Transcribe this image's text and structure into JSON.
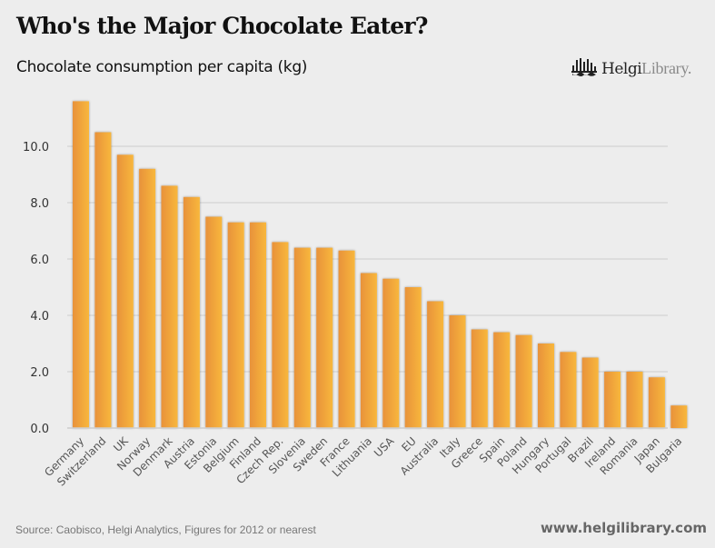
{
  "header": {
    "title": "Who's the Major Chocolate Eater?",
    "subtitle": "Chocolate consumption per capita (kg)",
    "logo_bold": "Helgi",
    "logo_light": "Library."
  },
  "footer": {
    "source": "Source: Caobisco, Helgi Analytics, Figures for 2012 or nearest",
    "site": "www.helgilibrary.com"
  },
  "colors": {
    "bar_dark": "#e8923a",
    "bar_light": "#f8b73c",
    "grid": "#d4d4d4",
    "background": "#ededed"
  },
  "chart_data": {
    "type": "bar",
    "title": "Who's the Major Chocolate Eater?",
    "subtitle": "Chocolate consumption per capita (kg)",
    "xlabel": "",
    "ylabel": "",
    "ylim": [
      0,
      11.5
    ],
    "yticks": [
      0.0,
      2.0,
      4.0,
      6.0,
      8.0,
      10.0
    ],
    "ytick_labels": [
      "0.0",
      "2.0",
      "4.0",
      "6.0",
      "8.0",
      "10.0"
    ],
    "grid": true,
    "legend": "none",
    "categories": [
      "Germany",
      "Switzerland",
      "UK",
      "Norway",
      "Denmark",
      "Austria",
      "Estonia",
      "Belgium",
      "Finland",
      "Czech Rep.",
      "Slovenia",
      "Sweden",
      "France",
      "Lithuania",
      "USA",
      "EU",
      "Australia",
      "Italy",
      "Greece",
      "Spain",
      "Poland",
      "Hungary",
      "Portugal",
      "Brazil",
      "Ireland",
      "Romania",
      "Japan",
      "Bulgaria"
    ],
    "values": [
      11.6,
      10.5,
      9.7,
      9.2,
      8.6,
      8.2,
      7.5,
      7.3,
      7.3,
      6.6,
      6.4,
      6.4,
      6.3,
      5.5,
      5.3,
      5.0,
      4.5,
      4.0,
      3.5,
      3.4,
      3.3,
      3.0,
      2.7,
      2.5,
      2.0,
      2.0,
      1.8,
      0.8
    ]
  }
}
